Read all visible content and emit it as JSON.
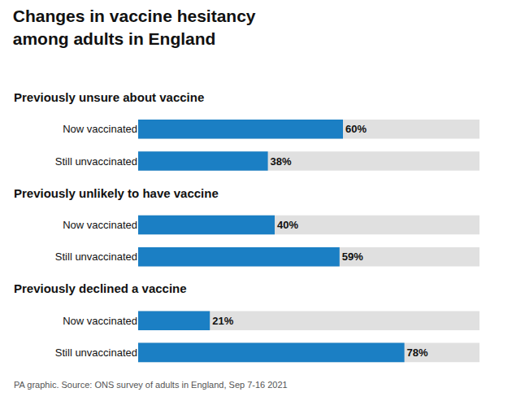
{
  "chart_data": {
    "type": "bar",
    "orientation": "horizontal",
    "title": "Changes in vaccine hesitancy\namong adults in England",
    "annotations": [
      "PA graphic. Source: ONS survey of adults in England, Sep 7-16 2021"
    ],
    "color": "#1b7fc4",
    "xlim": [
      0,
      100
    ],
    "grid": false,
    "tick_labels": "y",
    "data_labels": true,
    "groups": [
      {
        "header": "Previously unsure about vaccine",
        "categories": [
          "Now vaccinated",
          "Still unvaccinated"
        ],
        "values": [
          60,
          38
        ],
        "value_labels": [
          "60%",
          "38%"
        ]
      },
      {
        "header": "Previously unlikely to have vaccine",
        "categories": [
          "Now vaccinated",
          "Still unvaccinated"
        ],
        "values": [
          40,
          59
        ],
        "value_labels": [
          "40%",
          "59%"
        ]
      },
      {
        "header": "Previously declined a vaccine",
        "categories": [
          "Now vaccinated",
          "Still unvaccinated"
        ],
        "values": [
          21,
          78
        ],
        "value_labels": [
          "21%",
          "78%"
        ]
      }
    ]
  }
}
